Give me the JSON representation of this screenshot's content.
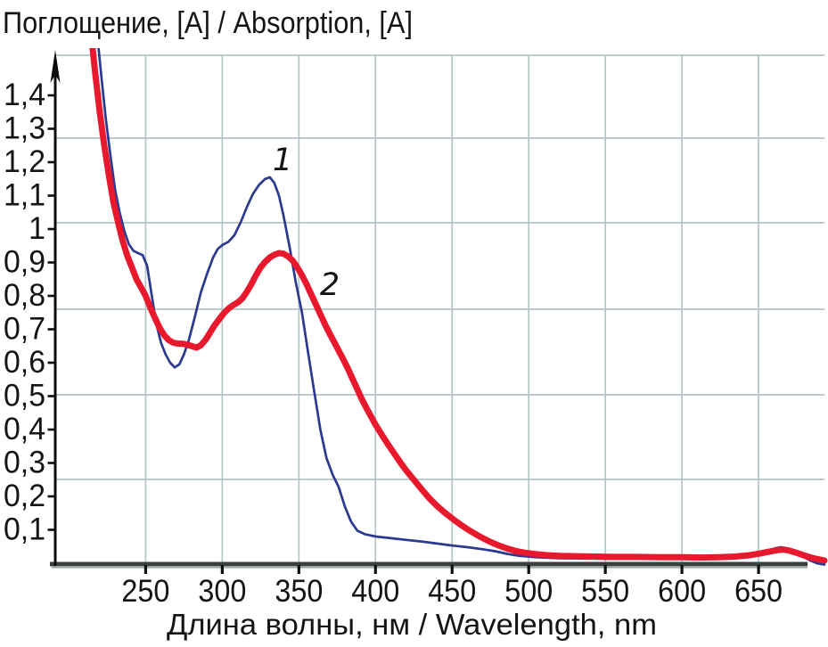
{
  "title": "Поглощение, [A] / Absorption, [A]",
  "x_axis_label": "Длина волны, нм / Wavelength, nm",
  "curve_labels": {
    "curve1": "1",
    "curve2": "2"
  },
  "colors": {
    "curve1_blue": "#2b3a90",
    "curve2_red": "#e8182d",
    "grid": "#b3c5c7",
    "x_axis": "#384042",
    "y_axis": "#0c0c0c",
    "text": "#141414"
  },
  "chart_data": {
    "type": "line",
    "title": "Поглощение, [A] / Absorption, [A]",
    "xlabel": "Длина волны, нм / Wavelength, nm",
    "ylabel": "Поглощение, [A] / Absorption, [A]",
    "xlim": [
      191,
      693
    ],
    "ylim": [
      0,
      1.52
    ],
    "grid": "on",
    "legend": "none",
    "x_ticks": [
      250,
      300,
      350,
      400,
      450,
      500,
      550,
      600,
      650
    ],
    "x_tick_labels": [
      "250",
      "300",
      "350",
      "400",
      "450",
      "500",
      "550",
      "600",
      "650"
    ],
    "y_ticks": [
      0.1,
      0.2,
      0.3,
      0.4,
      0.5,
      0.6,
      0.7,
      0.8,
      0.9,
      1.0,
      1.1,
      1.2,
      1.3,
      1.4
    ],
    "y_tick_labels": [
      "0,1",
      "0,2",
      "0,3",
      "0,4",
      "0,5",
      "0,6",
      "0,7",
      "0,8",
      "0,9",
      "1",
      "1,1",
      "1,2",
      "1,3",
      "1,4"
    ],
    "grid_y_values": [
      0.251,
      0.504,
      0.76,
      1.019,
      1.272,
      1.52
    ],
    "series": [
      {
        "name": "1 — thin blue spectrum (peak 1.15 at 331 nm)",
        "color": "#2b3a90",
        "stroke_width": 2.7,
        "points": [
          [
            218,
            1.6
          ],
          [
            221,
            1.46
          ],
          [
            224,
            1.33
          ],
          [
            227,
            1.22
          ],
          [
            230,
            1.12
          ],
          [
            233,
            1.05
          ],
          [
            236,
            0.995
          ],
          [
            239,
            0.955
          ],
          [
            242,
            0.935
          ],
          [
            245,
            0.928
          ],
          [
            248,
            0.922
          ],
          [
            251,
            0.89
          ],
          [
            254,
            0.8
          ],
          [
            257,
            0.715
          ],
          [
            260,
            0.66
          ],
          [
            263,
            0.625
          ],
          [
            266,
            0.6
          ],
          [
            269,
            0.586
          ],
          [
            272,
            0.595
          ],
          [
            275,
            0.625
          ],
          [
            278,
            0.665
          ],
          [
            282,
            0.735
          ],
          [
            286,
            0.81
          ],
          [
            290,
            0.865
          ],
          [
            294,
            0.915
          ],
          [
            297,
            0.94
          ],
          [
            300,
            0.952
          ],
          [
            304,
            0.962
          ],
          [
            308,
            0.982
          ],
          [
            312,
            1.02
          ],
          [
            316,
            1.065
          ],
          [
            320,
            1.105
          ],
          [
            324,
            1.132
          ],
          [
            328,
            1.15
          ],
          [
            331,
            1.155
          ],
          [
            334,
            1.138
          ],
          [
            337,
            1.1
          ],
          [
            340,
            1.04
          ],
          [
            344,
            0.945
          ],
          [
            348,
            0.84
          ],
          [
            352,
            0.75
          ],
          [
            356,
            0.63
          ],
          [
            360,
            0.515
          ],
          [
            364,
            0.4
          ],
          [
            368,
            0.315
          ],
          [
            372,
            0.265
          ],
          [
            376,
            0.228
          ],
          [
            380,
            0.17
          ],
          [
            384,
            0.125
          ],
          [
            388,
            0.098
          ],
          [
            393,
            0.087
          ],
          [
            400,
            0.08
          ],
          [
            410,
            0.075
          ],
          [
            420,
            0.07
          ],
          [
            430,
            0.065
          ],
          [
            440,
            0.059
          ],
          [
            450,
            0.053
          ],
          [
            460,
            0.048
          ],
          [
            470,
            0.042
          ],
          [
            478,
            0.036
          ],
          [
            486,
            0.028
          ],
          [
            494,
            0.022
          ],
          [
            505,
            0.018
          ],
          [
            520,
            0.015
          ],
          [
            540,
            0.014
          ],
          [
            560,
            0.013
          ],
          [
            580,
            0.013
          ],
          [
            600,
            0.013
          ],
          [
            615,
            0.014
          ],
          [
            630,
            0.016
          ],
          [
            642,
            0.02
          ],
          [
            650,
            0.027
          ],
          [
            656,
            0.037
          ],
          [
            661,
            0.045
          ],
          [
            665,
            0.048
          ],
          [
            669,
            0.043
          ],
          [
            674,
            0.032
          ],
          [
            679,
            0.02
          ],
          [
            684,
            0.008
          ],
          [
            688,
            0.0
          ],
          [
            693,
            -0.004
          ]
        ]
      },
      {
        "name": "2 — thick red spectrum (peak 0.93 at 338 nm)",
        "color": "#e8182d",
        "stroke_width": 7,
        "points": [
          [
            214,
            1.6
          ],
          [
            217,
            1.47
          ],
          [
            220,
            1.35
          ],
          [
            223,
            1.25
          ],
          [
            226,
            1.16
          ],
          [
            229,
            1.08
          ],
          [
            232,
            1.02
          ],
          [
            235,
            0.965
          ],
          [
            238,
            0.92
          ],
          [
            241,
            0.885
          ],
          [
            244,
            0.85
          ],
          [
            247,
            0.825
          ],
          [
            250,
            0.8
          ],
          [
            253,
            0.765
          ],
          [
            256,
            0.735
          ],
          [
            259,
            0.705
          ],
          [
            262,
            0.683
          ],
          [
            265,
            0.668
          ],
          [
            268,
            0.66
          ],
          [
            271,
            0.657
          ],
          [
            274,
            0.657
          ],
          [
            277,
            0.654
          ],
          [
            280,
            0.65
          ],
          [
            283,
            0.645
          ],
          [
            286,
            0.652
          ],
          [
            289,
            0.668
          ],
          [
            292,
            0.69
          ],
          [
            295,
            0.712
          ],
          [
            298,
            0.73
          ],
          [
            301,
            0.748
          ],
          [
            304,
            0.762
          ],
          [
            307,
            0.772
          ],
          [
            310,
            0.78
          ],
          [
            313,
            0.792
          ],
          [
            316,
            0.812
          ],
          [
            319,
            0.835
          ],
          [
            322,
            0.862
          ],
          [
            325,
            0.885
          ],
          [
            328,
            0.902
          ],
          [
            331,
            0.915
          ],
          [
            334,
            0.923
          ],
          [
            337,
            0.928
          ],
          [
            340,
            0.926
          ],
          [
            343,
            0.918
          ],
          [
            346,
            0.905
          ],
          [
            349,
            0.885
          ],
          [
            352,
            0.862
          ],
          [
            355,
            0.835
          ],
          [
            358,
            0.805
          ],
          [
            361,
            0.775
          ],
          [
            364,
            0.745
          ],
          [
            367,
            0.715
          ],
          [
            370,
            0.688
          ],
          [
            373,
            0.662
          ],
          [
            376,
            0.636
          ],
          [
            379,
            0.61
          ],
          [
            382,
            0.582
          ],
          [
            385,
            0.552
          ],
          [
            388,
            0.522
          ],
          [
            391,
            0.492
          ],
          [
            394,
            0.465
          ],
          [
            397,
            0.44
          ],
          [
            400,
            0.415
          ],
          [
            404,
            0.385
          ],
          [
            408,
            0.357
          ],
          [
            412,
            0.33
          ],
          [
            416,
            0.303
          ],
          [
            420,
            0.278
          ],
          [
            425,
            0.25
          ],
          [
            430,
            0.222
          ],
          [
            435,
            0.195
          ],
          [
            440,
            0.172
          ],
          [
            445,
            0.152
          ],
          [
            450,
            0.134
          ],
          [
            456,
            0.114
          ],
          [
            462,
            0.096
          ],
          [
            468,
            0.08
          ],
          [
            474,
            0.066
          ],
          [
            480,
            0.054
          ],
          [
            486,
            0.044
          ],
          [
            492,
            0.036
          ],
          [
            498,
            0.031
          ],
          [
            505,
            0.027
          ],
          [
            512,
            0.024
          ],
          [
            520,
            0.022
          ],
          [
            530,
            0.021
          ],
          [
            542,
            0.02
          ],
          [
            555,
            0.019
          ],
          [
            570,
            0.019
          ],
          [
            585,
            0.018
          ],
          [
            600,
            0.018
          ],
          [
            612,
            0.017
          ],
          [
            624,
            0.018
          ],
          [
            635,
            0.02
          ],
          [
            644,
            0.024
          ],
          [
            651,
            0.029
          ],
          [
            657,
            0.035
          ],
          [
            662,
            0.039
          ],
          [
            666,
            0.041
          ],
          [
            670,
            0.038
          ],
          [
            675,
            0.031
          ],
          [
            680,
            0.023
          ],
          [
            685,
            0.016
          ],
          [
            690,
            0.011
          ],
          [
            693,
            0.008
          ]
        ]
      }
    ],
    "annotations": [
      {
        "text": "1",
        "x": 338,
        "y": 1.21
      },
      {
        "text": "2",
        "x": 368,
        "y": 0.84
      }
    ]
  }
}
